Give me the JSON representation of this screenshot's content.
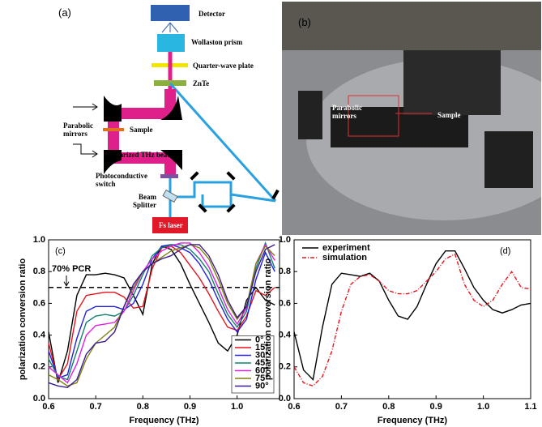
{
  "diagram": {
    "panel_label": "(a)",
    "detector": "Detector",
    "wollaston": "Wollaston prism",
    "quarter_wave": "Quarter-wave plate",
    "znte": "ZnTe",
    "parabolic": "Parabolic mirrors",
    "sample": "Sample",
    "thz_beam": "Polarized THz beam",
    "switch": "Photoconductive switch",
    "splitter": "Beam Splitter",
    "laser": "Fs laser"
  },
  "photo": {
    "panel_label": "(b)",
    "parabolic": "Parabolic mirrors",
    "sample": "Sample"
  },
  "chart_data": [
    {
      "type": "line",
      "panel_label": "(c)",
      "x_label": "Frequency (THz)",
      "y_label": "polarization conversion ratio",
      "xlim": [
        0.6,
        1.09
      ],
      "ylim": [
        0,
        1.0
      ],
      "xticks": [
        0.6,
        0.7,
        0.8,
        0.9,
        {
          "value": 1.0,
          "label": "1.0"
        }
      ],
      "yticks": [
        {
          "value": 0,
          "label": "0.0"
        },
        0.2,
        0.4,
        0.6,
        0.8,
        {
          "value": 1.0,
          "label": "1.0"
        }
      ],
      "reference_line": 0.7,
      "annotation": "70% PCR",
      "legend": "lower right",
      "x": [
        0.6,
        0.62,
        0.64,
        0.66,
        0.68,
        0.7,
        0.72,
        0.74,
        0.76,
        0.78,
        0.8,
        0.82,
        0.84,
        0.86,
        0.88,
        0.9,
        0.92,
        0.94,
        0.96,
        0.98,
        1.0,
        1.02,
        1.04,
        1.06,
        1.08
      ],
      "series": [
        {
          "name": "0°",
          "color": "#000000",
          "values": [
            0.42,
            0.1,
            0.3,
            0.65,
            0.78,
            0.78,
            0.79,
            0.78,
            0.76,
            0.65,
            0.53,
            0.85,
            0.96,
            0.94,
            0.85,
            0.72,
            0.6,
            0.48,
            0.35,
            0.3,
            0.4,
            0.62,
            0.7,
            0.62,
            0.59
          ]
        },
        {
          "name": "15°",
          "color": "#e8141c",
          "values": [
            0.35,
            0.12,
            0.22,
            0.55,
            0.65,
            0.66,
            0.67,
            0.67,
            0.64,
            0.57,
            0.58,
            0.82,
            0.95,
            0.96,
            0.92,
            0.84,
            0.76,
            0.66,
            0.55,
            0.45,
            0.43,
            0.52,
            0.68,
            0.65,
            0.7
          ]
        },
        {
          "name": "30°",
          "color": "#2020e0",
          "values": [
            0.3,
            0.13,
            0.15,
            0.38,
            0.55,
            0.58,
            0.58,
            0.58,
            0.56,
            0.6,
            0.72,
            0.88,
            0.96,
            0.97,
            0.95,
            0.92,
            0.85,
            0.75,
            0.62,
            0.5,
            0.42,
            0.5,
            0.75,
            0.92,
            0.8
          ]
        },
        {
          "name": "45°",
          "color": "#108070",
          "values": [
            0.25,
            0.14,
            0.12,
            0.3,
            0.48,
            0.52,
            0.53,
            0.52,
            0.55,
            0.65,
            0.78,
            0.9,
            0.95,
            0.97,
            0.97,
            0.94,
            0.88,
            0.8,
            0.66,
            0.53,
            0.45,
            0.55,
            0.82,
            0.98,
            0.82
          ]
        },
        {
          "name": "60°",
          "color": "#e020e0",
          "values": [
            0.2,
            0.15,
            0.1,
            0.22,
            0.4,
            0.46,
            0.47,
            0.48,
            0.55,
            0.68,
            0.8,
            0.88,
            0.93,
            0.96,
            0.98,
            0.98,
            0.92,
            0.83,
            0.7,
            0.56,
            0.47,
            0.57,
            0.85,
            0.97,
            0.87
          ]
        },
        {
          "name": "75°",
          "color": "#808010",
          "values": [
            0.15,
            0.12,
            0.08,
            0.1,
            0.25,
            0.35,
            0.4,
            0.45,
            0.58,
            0.7,
            0.8,
            0.85,
            0.89,
            0.93,
            0.95,
            0.97,
            0.95,
            0.88,
            0.75,
            0.6,
            0.5,
            0.58,
            0.85,
            0.96,
            0.9
          ]
        },
        {
          "name": "90°",
          "color": "#3a1a90",
          "values": [
            0.1,
            0.08,
            0.07,
            0.12,
            0.28,
            0.35,
            0.36,
            0.42,
            0.58,
            0.72,
            0.8,
            0.85,
            0.88,
            0.9,
            0.94,
            0.97,
            0.97,
            0.9,
            0.78,
            0.62,
            0.51,
            0.58,
            0.8,
            0.94,
            0.97
          ]
        }
      ]
    },
    {
      "type": "line",
      "panel_label": "(d)",
      "x_label": "Frequency (THz)",
      "y_label": "polarization conversion ratio",
      "xlim": [
        0.6,
        1.1
      ],
      "ylim": [
        0,
        1.0
      ],
      "xticks": [
        0.6,
        0.7,
        0.8,
        0.9,
        {
          "value": 1.0,
          "label": "1.0"
        },
        1.1
      ],
      "yticks": [
        {
          "value": 0,
          "label": "0.0"
        },
        0.2,
        0.4,
        0.6,
        0.8,
        {
          "value": 1.0,
          "label": "1.0"
        }
      ],
      "legend": "upper left",
      "x": [
        0.6,
        0.62,
        0.64,
        0.66,
        0.68,
        0.7,
        0.72,
        0.74,
        0.76,
        0.78,
        0.8,
        0.82,
        0.84,
        0.86,
        0.88,
        0.9,
        0.92,
        0.94,
        0.96,
        0.98,
        1.0,
        1.02,
        1.04,
        1.06,
        1.08,
        1.1
      ],
      "series": [
        {
          "name": "experiment",
          "color": "#000000",
          "line_style": "solid",
          "values": [
            0.42,
            0.18,
            0.12,
            0.45,
            0.72,
            0.79,
            0.78,
            0.77,
            0.79,
            0.74,
            0.62,
            0.52,
            0.5,
            0.58,
            0.72,
            0.85,
            0.93,
            0.93,
            0.82,
            0.7,
            0.62,
            0.56,
            0.54,
            0.56,
            0.59,
            0.6
          ]
        },
        {
          "name": "simulation",
          "color": "#e8141c",
          "line_style": "dash-dot",
          "values": [
            0.2,
            0.1,
            0.08,
            0.14,
            0.3,
            0.55,
            0.72,
            0.77,
            0.78,
            0.74,
            0.68,
            0.66,
            0.66,
            0.68,
            0.74,
            0.8,
            0.88,
            0.91,
            0.72,
            0.62,
            0.58,
            0.62,
            0.72,
            0.8,
            0.7,
            0.69
          ]
        }
      ]
    }
  ]
}
